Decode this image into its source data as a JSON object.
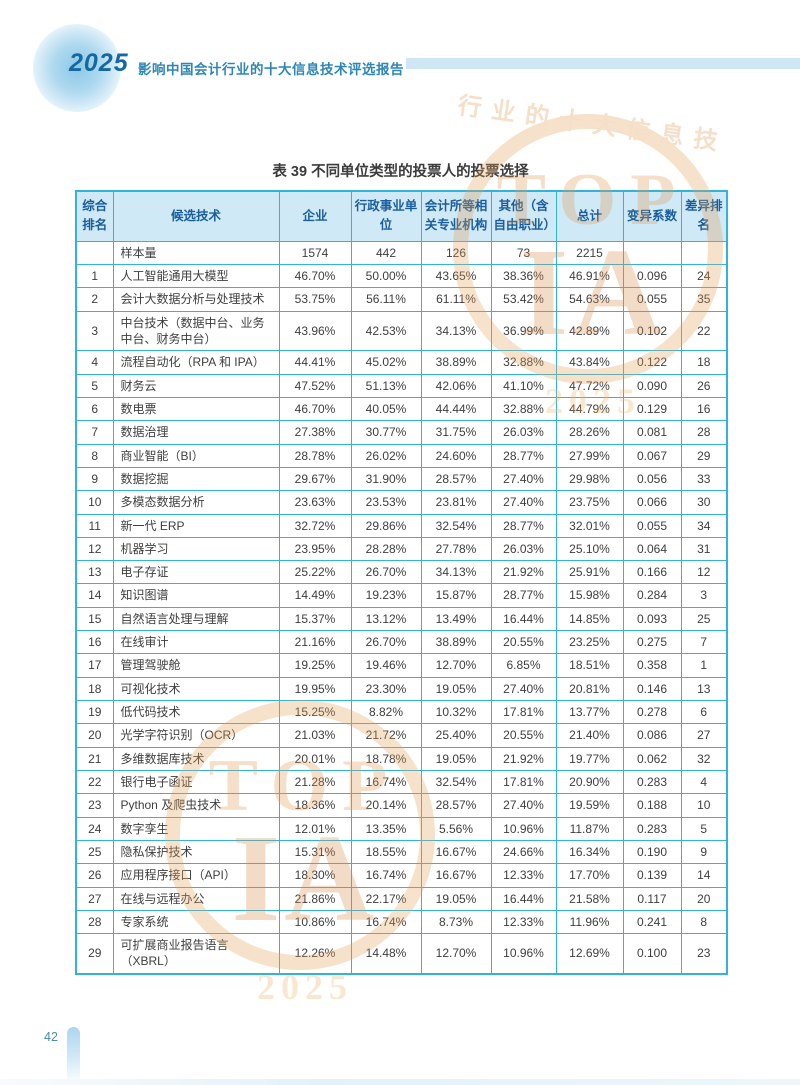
{
  "page": {
    "number": "42"
  },
  "header": {
    "year": "2025",
    "title": "影响中国会计行业的十大信息技术评选报告"
  },
  "watermark": {
    "arc_text": "行业的十大信息技",
    "top_label": "TOP",
    "monogram": "IA",
    "year": "2025"
  },
  "colors": {
    "table_border": "#32b4d9",
    "table_header_bg": "#cfe9f7",
    "table_header_text": "#1a5d9c",
    "body_text": "#3e3e3e",
    "accent_blue": "#2e86b7",
    "watermark_orange": "#e2994d"
  },
  "table": {
    "caption": "表 39 不同单位类型的投票人的投票选择",
    "columns": [
      "综合排名",
      "候选技术",
      "企业",
      "行政事业单位",
      "会计所等相关专业机构",
      "其他（含自由职业）",
      "总计",
      "变异系数",
      "差异排名"
    ],
    "rows": [
      {
        "rank": "",
        "tech": "样本量",
        "values": [
          "1574",
          "442",
          "126",
          "73",
          "2215",
          "",
          ""
        ]
      },
      {
        "rank": "1",
        "tech": "人工智能通用大模型",
        "values": [
          "46.70%",
          "50.00%",
          "43.65%",
          "38.36%",
          "46.91%",
          "0.096",
          "24"
        ]
      },
      {
        "rank": "2",
        "tech": "会计大数据分析与处理技术",
        "values": [
          "53.75%",
          "56.11%",
          "61.11%",
          "53.42%",
          "54.63%",
          "0.055",
          "35"
        ]
      },
      {
        "rank": "3",
        "tech": "中台技术（数据中台、业务中台、财务中台）",
        "values": [
          "43.96%",
          "42.53%",
          "34.13%",
          "36.99%",
          "42.89%",
          "0.102",
          "22"
        ]
      },
      {
        "rank": "4",
        "tech": "流程自动化（RPA 和 IPA）",
        "values": [
          "44.41%",
          "45.02%",
          "38.89%",
          "32.88%",
          "43.84%",
          "0.122",
          "18"
        ]
      },
      {
        "rank": "5",
        "tech": "财务云",
        "values": [
          "47.52%",
          "51.13%",
          "42.06%",
          "41.10%",
          "47.72%",
          "0.090",
          "26"
        ]
      },
      {
        "rank": "6",
        "tech": "数电票",
        "values": [
          "46.70%",
          "40.05%",
          "44.44%",
          "32.88%",
          "44.79%",
          "0.129",
          "16"
        ]
      },
      {
        "rank": "7",
        "tech": "数据治理",
        "values": [
          "27.38%",
          "30.77%",
          "31.75%",
          "26.03%",
          "28.26%",
          "0.081",
          "28"
        ]
      },
      {
        "rank": "8",
        "tech": "商业智能（BI）",
        "values": [
          "28.78%",
          "26.02%",
          "24.60%",
          "28.77%",
          "27.99%",
          "0.067",
          "29"
        ]
      },
      {
        "rank": "9",
        "tech": "数据挖掘",
        "values": [
          "29.67%",
          "31.90%",
          "28.57%",
          "27.40%",
          "29.98%",
          "0.056",
          "33"
        ]
      },
      {
        "rank": "10",
        "tech": "多模态数据分析",
        "values": [
          "23.63%",
          "23.53%",
          "23.81%",
          "27.40%",
          "23.75%",
          "0.066",
          "30"
        ]
      },
      {
        "rank": "11",
        "tech": "新一代 ERP",
        "values": [
          "32.72%",
          "29.86%",
          "32.54%",
          "28.77%",
          "32.01%",
          "0.055",
          "34"
        ]
      },
      {
        "rank": "12",
        "tech": "机器学习",
        "values": [
          "23.95%",
          "28.28%",
          "27.78%",
          "26.03%",
          "25.10%",
          "0.064",
          "31"
        ]
      },
      {
        "rank": "13",
        "tech": "电子存证",
        "values": [
          "25.22%",
          "26.70%",
          "34.13%",
          "21.92%",
          "25.91%",
          "0.166",
          "12"
        ]
      },
      {
        "rank": "14",
        "tech": "知识图谱",
        "values": [
          "14.49%",
          "19.23%",
          "15.87%",
          "28.77%",
          "15.98%",
          "0.284",
          "3"
        ]
      },
      {
        "rank": "15",
        "tech": "自然语言处理与理解",
        "values": [
          "15.37%",
          "13.12%",
          "13.49%",
          "16.44%",
          "14.85%",
          "0.093",
          "25"
        ]
      },
      {
        "rank": "16",
        "tech": "在线审计",
        "values": [
          "21.16%",
          "26.70%",
          "38.89%",
          "20.55%",
          "23.25%",
          "0.275",
          "7"
        ]
      },
      {
        "rank": "17",
        "tech": "管理驾驶舱",
        "values": [
          "19.25%",
          "19.46%",
          "12.70%",
          "6.85%",
          "18.51%",
          "0.358",
          "1"
        ]
      },
      {
        "rank": "18",
        "tech": "可视化技术",
        "values": [
          "19.95%",
          "23.30%",
          "19.05%",
          "27.40%",
          "20.81%",
          "0.146",
          "13"
        ]
      },
      {
        "rank": "19",
        "tech": "低代码技术",
        "values": [
          "15.25%",
          "8.82%",
          "10.32%",
          "17.81%",
          "13.77%",
          "0.278",
          "6"
        ]
      },
      {
        "rank": "20",
        "tech": "光学字符识别（OCR）",
        "values": [
          "21.03%",
          "21.72%",
          "25.40%",
          "20.55%",
          "21.40%",
          "0.086",
          "27"
        ]
      },
      {
        "rank": "21",
        "tech": "多维数据库技术",
        "values": [
          "20.01%",
          "18.78%",
          "19.05%",
          "21.92%",
          "19.77%",
          "0.062",
          "32"
        ]
      },
      {
        "rank": "22",
        "tech": "银行电子函证",
        "values": [
          "21.28%",
          "16.74%",
          "32.54%",
          "17.81%",
          "20.90%",
          "0.283",
          "4"
        ]
      },
      {
        "rank": "23",
        "tech": "Python 及爬虫技术",
        "values": [
          "18.36%",
          "20.14%",
          "28.57%",
          "27.40%",
          "19.59%",
          "0.188",
          "10"
        ]
      },
      {
        "rank": "24",
        "tech": "数字孪生",
        "values": [
          "12.01%",
          "13.35%",
          "5.56%",
          "10.96%",
          "11.87%",
          "0.283",
          "5"
        ]
      },
      {
        "rank": "25",
        "tech": "隐私保护技术",
        "values": [
          "15.31%",
          "18.55%",
          "16.67%",
          "24.66%",
          "16.34%",
          "0.190",
          "9"
        ]
      },
      {
        "rank": "26",
        "tech": "应用程序接口（API）",
        "values": [
          "18.30%",
          "16.74%",
          "16.67%",
          "12.33%",
          "17.70%",
          "0.139",
          "14"
        ]
      },
      {
        "rank": "27",
        "tech": "在线与远程办公",
        "values": [
          "21.86%",
          "22.17%",
          "19.05%",
          "16.44%",
          "21.58%",
          "0.117",
          "20"
        ]
      },
      {
        "rank": "28",
        "tech": "专家系统",
        "values": [
          "10.86%",
          "16.74%",
          "8.73%",
          "12.33%",
          "11.96%",
          "0.241",
          "8"
        ]
      },
      {
        "rank": "29",
        "tech": "可扩展商业报告语言（XBRL）",
        "values": [
          "12.26%",
          "14.48%",
          "12.70%",
          "10.96%",
          "12.69%",
          "0.100",
          "23"
        ]
      }
    ]
  }
}
